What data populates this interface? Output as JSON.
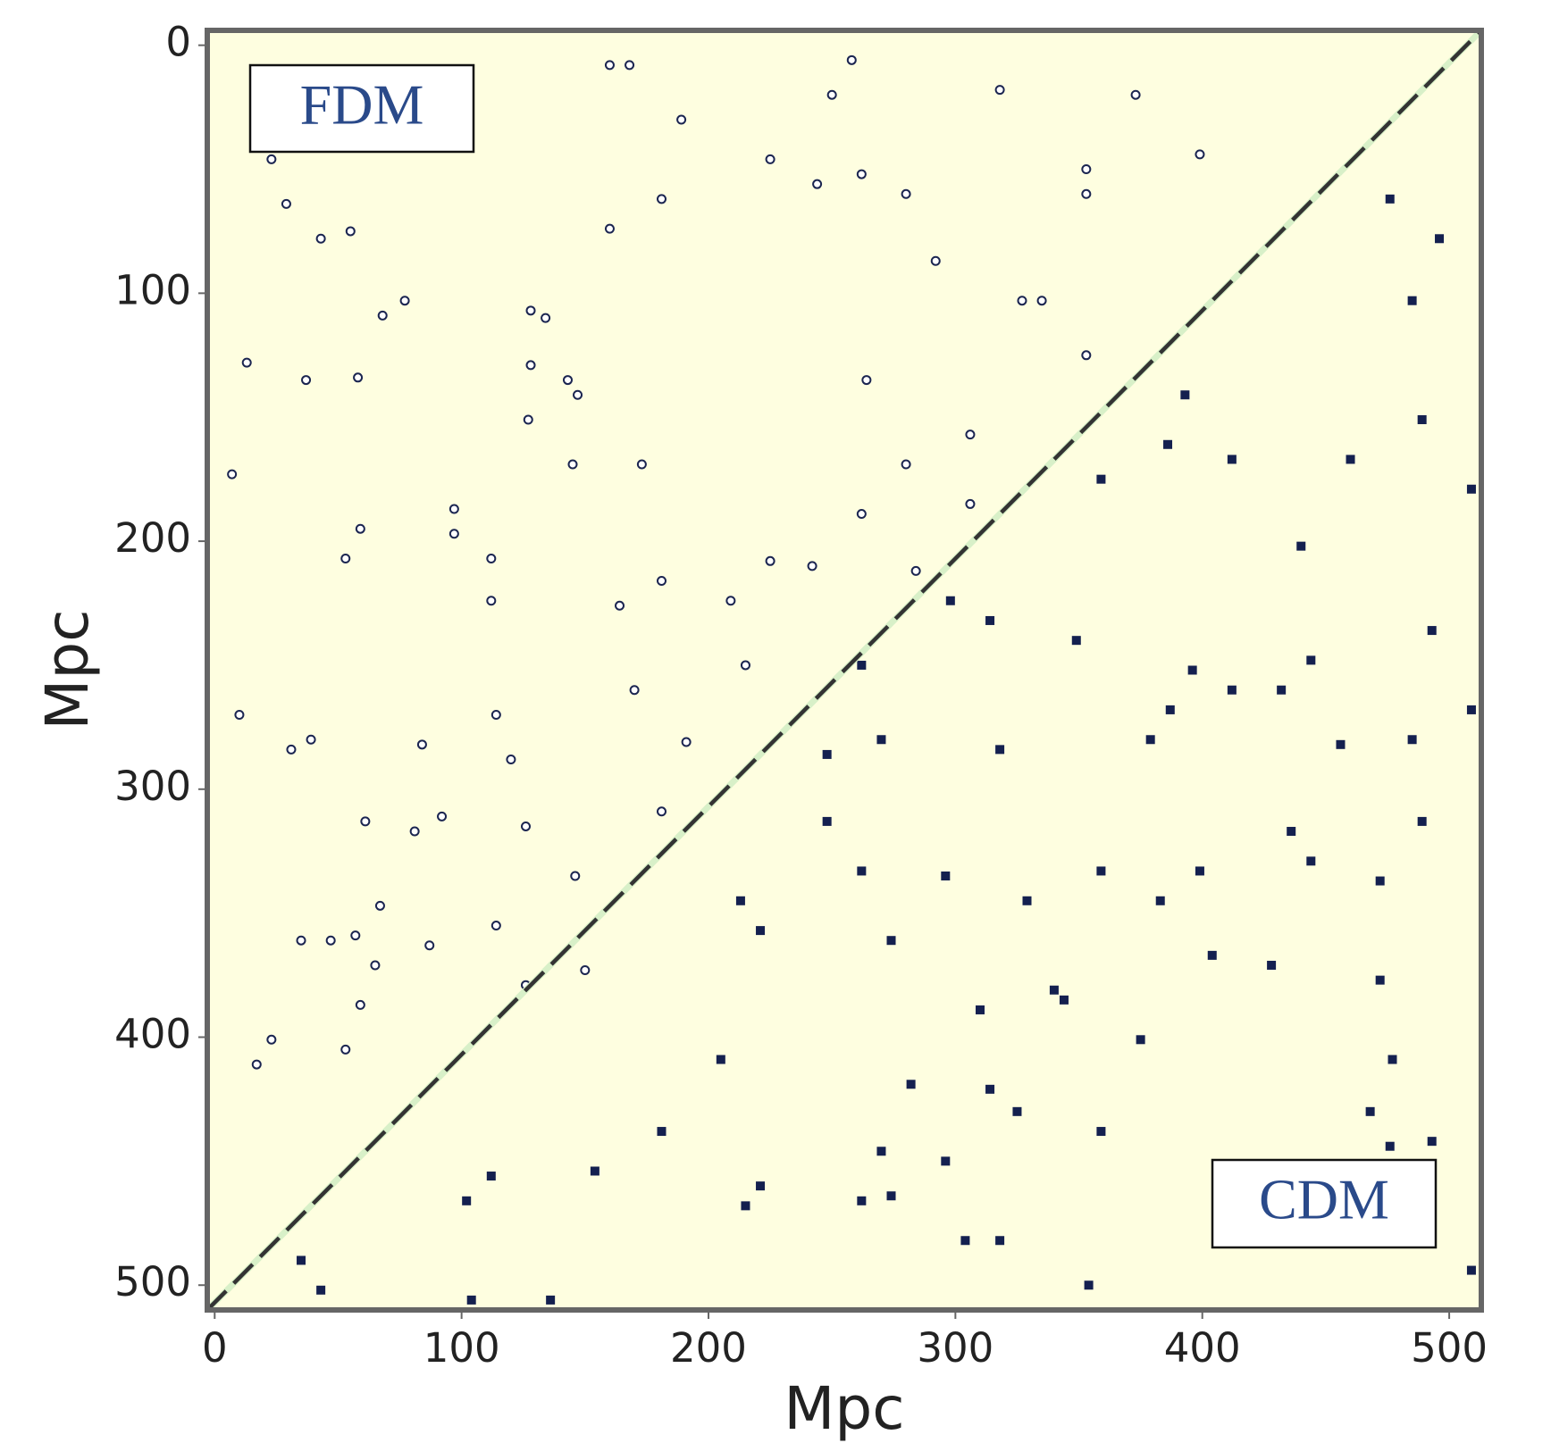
{
  "chart_data": {
    "type": "scatter",
    "xlabel": "Mpc",
    "ylabel": "Mpc",
    "xlim": [
      -3,
      513
    ],
    "ylim": [
      -6,
      510
    ],
    "y_inverted": true,
    "xticks": [
      0,
      100,
      200,
      300,
      400,
      500
    ],
    "yticks": [
      0,
      100,
      200,
      300,
      400,
      500
    ],
    "grid": false,
    "background": "#fefee0",
    "annotations": [
      "FDM",
      "CDM"
    ],
    "reference_line": {
      "x": [
        -3,
        513
      ],
      "y": [
        510,
        -6
      ],
      "color": "#333333",
      "dashed": true
    },
    "series": [
      {
        "color": "#1b2550",
        "marker": "circle",
        "x": [
          23,
          29,
          43,
          55,
          13,
          37,
          58,
          68,
          77,
          128,
          134,
          143,
          128,
          147,
          127,
          145,
          173,
          160,
          181,
          189,
          160,
          168,
          225,
          244,
          262,
          250,
          258,
          280,
          292,
          318,
          353,
          353,
          373,
          399,
          327,
          335,
          353,
          264,
          306,
          280,
          262,
          306,
          284,
          242,
          225,
          209,
          164,
          181,
          170,
          215,
          191,
          181,
          126,
          120,
          114,
          84,
          92,
          81,
          61,
          31,
          39,
          67,
          57,
          47,
          35,
          65,
          59,
          53,
          23,
          17,
          87,
          146,
          114,
          112,
          97,
          97,
          59,
          53,
          112,
          7,
          10,
          126,
          150
        ],
        "y": [
          46,
          64,
          78,
          75,
          128,
          135,
          134,
          109,
          103,
          107,
          110,
          135,
          129,
          141,
          151,
          169,
          169,
          74,
          62,
          30,
          8,
          8,
          46,
          56,
          52,
          20,
          6,
          60,
          87,
          18,
          50,
          60,
          20,
          44,
          103,
          103,
          125,
          135,
          157,
          169,
          189,
          185,
          212,
          210,
          208,
          224,
          226,
          216,
          260,
          250,
          281,
          309,
          315,
          288,
          270,
          282,
          311,
          317,
          313,
          284,
          280,
          347,
          359,
          361,
          361,
          371,
          387,
          405,
          401,
          411,
          363,
          335,
          355,
          207,
          187,
          197,
          195,
          207,
          224,
          173,
          270,
          379,
          373
        ]
      },
      {
        "color": "#14204f",
        "marker": "square",
        "x": [
          393,
          386,
          359,
          412,
          440,
          460,
          485,
          496,
          476,
          489,
          509,
          396,
          412,
          432,
          444,
          387,
          349,
          314,
          298,
          262,
          270,
          318,
          379,
          456,
          485,
          509,
          436,
          444,
          399,
          359,
          472,
          489,
          340,
          310,
          314,
          325,
          375,
          404,
          428,
          472,
          477,
          468,
          476,
          493,
          359,
          262,
          274,
          296,
          270,
          221,
          215,
          181,
          112,
          102,
          104,
          136,
          154,
          205,
          282,
          304,
          221,
          213,
          248,
          296,
          262,
          274,
          318,
          354,
          43,
          35,
          383,
          344,
          453,
          509,
          329,
          248,
          493
        ],
        "y": [
          141,
          161,
          175,
          167,
          202,
          167,
          103,
          78,
          62,
          151,
          179,
          252,
          260,
          260,
          248,
          268,
          240,
          232,
          224,
          250,
          280,
          284,
          280,
          282,
          280,
          268,
          317,
          329,
          333,
          333,
          337,
          313,
          381,
          389,
          421,
          430,
          401,
          367,
          371,
          377,
          409,
          430,
          444,
          442,
          438,
          466,
          464,
          450,
          446,
          460,
          468,
          438,
          456,
          466,
          506,
          506,
          454,
          409,
          419,
          482,
          357,
          345,
          313,
          335,
          333,
          361,
          482,
          500,
          502,
          490,
          345,
          385,
          466,
          494,
          345,
          286,
          236
        ]
      }
    ]
  }
}
